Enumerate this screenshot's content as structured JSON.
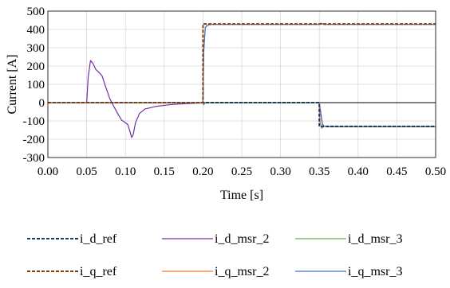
{
  "chart_data": {
    "type": "line",
    "title": "",
    "xlabel": "Time [s]",
    "ylabel": "Current [A]",
    "xlim": [
      0.0,
      0.5
    ],
    "ylim": [
      -300,
      500
    ],
    "x_ticks": [
      "0.00",
      "0.05",
      "0.10",
      "0.15",
      "0.20",
      "0.25",
      "0.30",
      "0.35",
      "0.40",
      "0.45",
      "0.50"
    ],
    "y_ticks": [
      "500",
      "400",
      "300",
      "200",
      "100",
      "0",
      "-100",
      "-200",
      "-300"
    ],
    "grid": true,
    "legend_position": "bottom",
    "series": [
      {
        "name": "i_d_ref",
        "color": "#1f3864",
        "style": "dashed",
        "points": [
          [
            0.0,
            0
          ],
          [
            0.35,
            0
          ],
          [
            0.35,
            -130
          ],
          [
            0.5,
            -130
          ]
        ]
      },
      {
        "name": "i_d_msr_2",
        "color": "#7030a0",
        "style": "solid",
        "points": [
          [
            0.0,
            -2
          ],
          [
            0.05,
            -2
          ],
          [
            0.052,
            140
          ],
          [
            0.055,
            230
          ],
          [
            0.058,
            215
          ],
          [
            0.062,
            180
          ],
          [
            0.066,
            165
          ],
          [
            0.07,
            145
          ],
          [
            0.075,
            80
          ],
          [
            0.08,
            20
          ],
          [
            0.085,
            -20
          ],
          [
            0.09,
            -60
          ],
          [
            0.095,
            -95
          ],
          [
            0.1,
            -110
          ],
          [
            0.103,
            -120
          ],
          [
            0.106,
            -160
          ],
          [
            0.108,
            -190
          ],
          [
            0.11,
            -175
          ],
          [
            0.113,
            -110
          ],
          [
            0.118,
            -60
          ],
          [
            0.125,
            -35
          ],
          [
            0.14,
            -20
          ],
          [
            0.16,
            -10
          ],
          [
            0.18,
            -5
          ],
          [
            0.2,
            -2
          ],
          [
            0.201,
            -8
          ],
          [
            0.203,
            -2
          ],
          [
            0.35,
            -2
          ],
          [
            0.352,
            -60
          ],
          [
            0.354,
            -118
          ],
          [
            0.356,
            -128
          ],
          [
            0.36,
            -132
          ],
          [
            0.5,
            -132
          ]
        ]
      },
      {
        "name": "i_d_msr_3",
        "color": "#70ad47",
        "style": "solid",
        "points": [
          [
            0.0,
            -2
          ],
          [
            0.2,
            -2
          ],
          [
            0.2,
            4
          ],
          [
            0.201,
            -12
          ],
          [
            0.203,
            -2
          ],
          [
            0.35,
            -2
          ],
          [
            0.351,
            -110
          ],
          [
            0.353,
            -140
          ],
          [
            0.356,
            -130
          ],
          [
            0.5,
            -130
          ]
        ]
      },
      {
        "name": "i_q_ref",
        "color": "#843c0c",
        "style": "dashed",
        "points": [
          [
            0.0,
            0
          ],
          [
            0.2,
            0
          ],
          [
            0.2,
            430
          ],
          [
            0.5,
            430
          ]
        ]
      },
      {
        "name": "i_q_msr_2",
        "color": "#ed7d31",
        "style": "solid",
        "points": [
          [
            0.0,
            0
          ],
          [
            0.2,
            0
          ],
          [
            0.201,
            300
          ],
          [
            0.203,
            412
          ],
          [
            0.206,
            424
          ],
          [
            0.21,
            428
          ],
          [
            0.35,
            428
          ],
          [
            0.352,
            434
          ],
          [
            0.356,
            428
          ],
          [
            0.5,
            428
          ]
        ]
      },
      {
        "name": "i_q_msr_3",
        "color": "#4472c4",
        "style": "solid",
        "points": [
          [
            0.0,
            0
          ],
          [
            0.2,
            0
          ],
          [
            0.201,
            280
          ],
          [
            0.203,
            410
          ],
          [
            0.206,
            423
          ],
          [
            0.21,
            427
          ],
          [
            0.35,
            427
          ],
          [
            0.352,
            434
          ],
          [
            0.356,
            427
          ],
          [
            0.5,
            427
          ]
        ]
      }
    ]
  }
}
